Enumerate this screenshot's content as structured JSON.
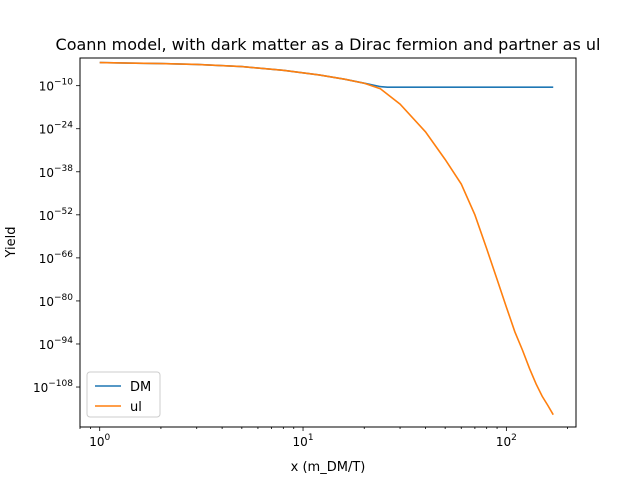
{
  "chart_data": {
    "type": "line",
    "title": "Coann model, with dark matter as a Dirac fermion and partner as ul",
    "xlabel": "x (m_DM/T)",
    "ylabel": "Yield",
    "xscale": "log",
    "yscale": "log",
    "xlim": [
      0.8,
      220
    ],
    "ylim": [
      1e-121,
      0.1
    ],
    "x_ticks": [
      {
        "value": 1,
        "mant": "10",
        "exp": "0"
      },
      {
        "value": 10,
        "mant": "10",
        "exp": "1"
      },
      {
        "value": 100,
        "mant": "10",
        "exp": "2"
      }
    ],
    "y_ticks": [
      {
        "log": -10,
        "mant": "10",
        "exp": "−10"
      },
      {
        "log": -24,
        "mant": "10",
        "exp": "−24"
      },
      {
        "log": -38,
        "mant": "10",
        "exp": "−38"
      },
      {
        "log": -52,
        "mant": "10",
        "exp": "−52"
      },
      {
        "log": -66,
        "mant": "10",
        "exp": "−66"
      },
      {
        "log": -80,
        "mant": "10",
        "exp": "−80"
      },
      {
        "log": -94,
        "mant": "10",
        "exp": "−94"
      },
      {
        "log": -108,
        "mant": "10",
        "exp": "−108"
      }
    ],
    "legend": "lower-left",
    "series": [
      {
        "name": "DM",
        "color": "#1f77b4",
        "x": [
          1,
          2,
          3,
          5,
          8,
          12,
          16,
          20,
          24,
          26,
          30,
          50,
          100,
          170
        ],
        "log10_y": [
          -2.5,
          -2.8,
          -3.1,
          -3.8,
          -5.0,
          -6.5,
          -7.9,
          -9.2,
          -10.3,
          -10.5,
          -10.5,
          -10.5,
          -10.5,
          -10.5
        ]
      },
      {
        "name": "ul",
        "color": "#ff7f0e",
        "x": [
          1,
          2,
          3,
          5,
          8,
          12,
          16,
          20,
          24,
          30,
          40,
          50,
          60,
          70,
          80,
          90,
          100,
          110,
          120,
          130,
          140,
          150,
          160,
          170
        ],
        "log10_y": [
          -2.5,
          -2.8,
          -3.1,
          -3.8,
          -5.0,
          -6.5,
          -7.9,
          -9.2,
          -11.0,
          -16.0,
          -25.0,
          -34.0,
          -42.0,
          -52.0,
          -63.0,
          -73.0,
          -82.0,
          -90.0,
          -96.0,
          -102.0,
          -107.0,
          -111.0,
          -114.0,
          -117.0
        ]
      }
    ]
  }
}
